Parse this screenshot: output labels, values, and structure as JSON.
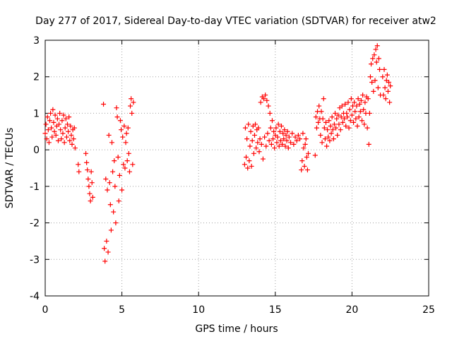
{
  "chart_data": {
    "type": "scatter",
    "title": "Day 277 of 2017, Sidereal Day-to-day VTEC variation (SDTVAR) for receiver atw2",
    "xlabel": "GPS time / hours",
    "ylabel": "SDTVAR / TECUs",
    "xlim": [
      0,
      25
    ],
    "ylim": [
      -4,
      3
    ],
    "xticks": [
      0,
      5,
      10,
      15,
      20,
      25
    ],
    "yticks": [
      -4,
      -3,
      -2,
      -1,
      0,
      1,
      2,
      3
    ],
    "x_tick_labels": [
      "0",
      "5",
      "10",
      "15",
      "20",
      "25"
    ],
    "y_tick_labels": [
      "-4",
      "-3",
      "-2",
      "-1",
      "0",
      "1",
      "2",
      "3"
    ],
    "grid": true,
    "marker": "+",
    "color": "#ff0000",
    "series": [
      {
        "name": "atw2",
        "points": [
          [
            0.0,
            0.45
          ],
          [
            0.05,
            0.7
          ],
          [
            0.1,
            0.3
          ],
          [
            0.15,
            0.9
          ],
          [
            0.2,
            0.55
          ],
          [
            0.25,
            0.2
          ],
          [
            0.3,
            0.8
          ],
          [
            0.35,
            1.0
          ],
          [
            0.4,
            0.6
          ],
          [
            0.45,
            0.35
          ],
          [
            0.5,
            1.1
          ],
          [
            0.55,
            0.75
          ],
          [
            0.6,
            0.5
          ],
          [
            0.65,
            0.95
          ],
          [
            0.7,
            0.4
          ],
          [
            0.75,
            0.65
          ],
          [
            0.8,
            0.85
          ],
          [
            0.85,
            0.25
          ],
          [
            0.9,
            0.7
          ],
          [
            0.95,
            1.0
          ],
          [
            1.0,
            0.55
          ],
          [
            1.05,
            0.3
          ],
          [
            1.1,
            0.8
          ],
          [
            1.15,
            0.45
          ],
          [
            1.2,
            0.95
          ],
          [
            1.25,
            0.2
          ],
          [
            1.3,
            0.6
          ],
          [
            1.35,
            0.85
          ],
          [
            1.4,
            0.35
          ],
          [
            1.45,
            0.7
          ],
          [
            1.5,
            0.5
          ],
          [
            1.55,
            0.9
          ],
          [
            1.6,
            0.25
          ],
          [
            1.65,
            0.65
          ],
          [
            1.7,
            0.4
          ],
          [
            1.75,
            0.15
          ],
          [
            1.8,
            0.55
          ],
          [
            1.85,
            0.3
          ],
          [
            1.9,
            0.6
          ],
          [
            1.95,
            0.05
          ],
          [
            2.15,
            -0.4
          ],
          [
            2.2,
            -0.6
          ],
          [
            2.65,
            -0.1
          ],
          [
            2.7,
            -0.35
          ],
          [
            2.75,
            -0.55
          ],
          [
            2.8,
            -0.8
          ],
          [
            2.85,
            -1.0
          ],
          [
            2.9,
            -1.2
          ],
          [
            2.95,
            -1.4
          ],
          [
            3.0,
            -0.6
          ],
          [
            3.05,
            -0.9
          ],
          [
            3.1,
            -1.3
          ],
          [
            3.8,
            1.25
          ],
          [
            3.85,
            -2.7
          ],
          [
            3.9,
            -3.05
          ],
          [
            3.95,
            -0.8
          ],
          [
            4.0,
            -2.5
          ],
          [
            4.05,
            -1.1
          ],
          [
            4.1,
            -2.8
          ],
          [
            4.15,
            0.4
          ],
          [
            4.2,
            -0.9
          ],
          [
            4.25,
            -1.5
          ],
          [
            4.3,
            -2.2
          ],
          [
            4.35,
            0.2
          ],
          [
            4.4,
            -0.6
          ],
          [
            4.45,
            -1.7
          ],
          [
            4.5,
            -0.3
          ],
          [
            4.55,
            -1.0
          ],
          [
            4.6,
            -2.0
          ],
          [
            4.65,
            1.15
          ],
          [
            4.7,
            0.9
          ],
          [
            4.75,
            -0.2
          ],
          [
            4.8,
            -1.4
          ],
          [
            4.85,
            -0.7
          ],
          [
            4.9,
            0.8
          ],
          [
            4.95,
            0.55
          ],
          [
            5.0,
            -1.1
          ],
          [
            5.05,
            0.35
          ],
          [
            5.1,
            -0.4
          ],
          [
            5.15,
            0.65
          ],
          [
            5.2,
            -0.5
          ],
          [
            5.25,
            0.2
          ],
          [
            5.3,
            0.45
          ],
          [
            5.35,
            -0.3
          ],
          [
            5.4,
            0.6
          ],
          [
            5.45,
            -0.1
          ],
          [
            5.5,
            -0.6
          ],
          [
            5.55,
            1.2
          ],
          [
            5.6,
            1.4
          ],
          [
            5.65,
            1.0
          ],
          [
            5.7,
            -0.4
          ],
          [
            5.75,
            1.3
          ],
          [
            13.0,
            -0.4
          ],
          [
            13.05,
            0.6
          ],
          [
            13.1,
            -0.2
          ],
          [
            13.15,
            0.3
          ],
          [
            13.2,
            -0.5
          ],
          [
            13.25,
            0.7
          ],
          [
            13.3,
            -0.3
          ],
          [
            13.35,
            0.1
          ],
          [
            13.4,
            0.5
          ],
          [
            13.45,
            -0.45
          ],
          [
            13.5,
            0.25
          ],
          [
            13.55,
            0.65
          ],
          [
            13.6,
            -0.1
          ],
          [
            13.65,
            0.4
          ],
          [
            13.7,
            0.7
          ],
          [
            13.75,
            0.05
          ],
          [
            13.8,
            0.55
          ],
          [
            13.85,
            0.2
          ],
          [
            13.9,
            0.6
          ],
          [
            13.95,
            -0.05
          ],
          [
            14.0,
            0.3
          ],
          [
            14.05,
            1.3
          ],
          [
            14.1,
            0.15
          ],
          [
            14.15,
            1.45
          ],
          [
            14.2,
            -0.25
          ],
          [
            14.25,
            1.4
          ],
          [
            14.3,
            0.35
          ],
          [
            14.35,
            1.5
          ],
          [
            14.4,
            0.1
          ],
          [
            14.45,
            1.35
          ],
          [
            14.5,
            0.45
          ],
          [
            14.55,
            1.2
          ],
          [
            14.6,
            0.25
          ],
          [
            14.65,
            1.0
          ],
          [
            14.7,
            0.6
          ],
          [
            14.75,
            0.15
          ],
          [
            14.8,
            0.8
          ],
          [
            14.85,
            0.3
          ],
          [
            14.9,
            0.5
          ],
          [
            14.95,
            0.05
          ],
          [
            15.0,
            0.4
          ],
          [
            15.05,
            0.6
          ],
          [
            15.1,
            0.2
          ],
          [
            15.15,
            0.35
          ],
          [
            15.2,
            0.7
          ],
          [
            15.25,
            0.1
          ],
          [
            15.3,
            0.5
          ],
          [
            15.35,
            0.25
          ],
          [
            15.4,
            0.65
          ],
          [
            15.45,
            0.15
          ],
          [
            15.5,
            0.45
          ],
          [
            15.55,
            0.3
          ],
          [
            15.6,
            0.55
          ],
          [
            15.65,
            0.1
          ],
          [
            15.7,
            0.4
          ],
          [
            15.75,
            0.25
          ],
          [
            15.8,
            0.5
          ],
          [
            15.85,
            0.05
          ],
          [
            15.9,
            0.35
          ],
          [
            16.0,
            0.2
          ],
          [
            16.1,
            0.45
          ],
          [
            16.2,
            0.15
          ],
          [
            16.3,
            0.35
          ],
          [
            16.4,
            0.25
          ],
          [
            16.5,
            0.4
          ],
          [
            16.6,
            0.3
          ],
          [
            16.7,
            -0.55
          ],
          [
            16.75,
            -0.3
          ],
          [
            16.8,
            0.45
          ],
          [
            16.85,
            0.05
          ],
          [
            16.9,
            -0.45
          ],
          [
            16.95,
            0.15
          ],
          [
            17.0,
            0.3
          ],
          [
            17.05,
            -0.2
          ],
          [
            17.1,
            -0.55
          ],
          [
            17.15,
            -0.1
          ],
          [
            17.6,
            -0.15
          ],
          [
            17.65,
            0.9
          ],
          [
            17.7,
            0.6
          ],
          [
            17.75,
            1.05
          ],
          [
            17.8,
            0.75
          ],
          [
            17.85,
            1.2
          ],
          [
            17.9,
            0.85
          ],
          [
            17.95,
            0.4
          ],
          [
            18.0,
            1.05
          ],
          [
            18.05,
            0.2
          ],
          [
            18.1,
            0.85
          ],
          [
            18.15,
            1.4
          ],
          [
            18.2,
            0.6
          ],
          [
            18.25,
            0.3
          ],
          [
            18.3,
            0.75
          ],
          [
            18.35,
            0.1
          ],
          [
            18.4,
            0.55
          ],
          [
            18.45,
            0.35
          ],
          [
            18.5,
            0.8
          ],
          [
            18.55,
            0.25
          ],
          [
            18.6,
            0.65
          ],
          [
            18.65,
            0.45
          ],
          [
            18.7,
            0.9
          ],
          [
            18.75,
            0.55
          ],
          [
            18.8,
            0.3
          ],
          [
            18.85,
            0.7
          ],
          [
            18.9,
            1.0
          ],
          [
            18.95,
            0.6
          ],
          [
            19.0,
            0.85
          ],
          [
            19.05,
            0.4
          ],
          [
            19.1,
            0.95
          ],
          [
            19.15,
            0.7
          ],
          [
            19.2,
            1.15
          ],
          [
            19.25,
            0.55
          ],
          [
            19.3,
            0.9
          ],
          [
            19.35,
            1.2
          ],
          [
            19.4,
            0.75
          ],
          [
            19.45,
            1.0
          ],
          [
            19.5,
            0.85
          ],
          [
            19.55,
            1.25
          ],
          [
            19.6,
            0.65
          ],
          [
            19.65,
            1.0
          ],
          [
            19.7,
            0.9
          ],
          [
            19.75,
            1.3
          ],
          [
            19.8,
            0.6
          ],
          [
            19.85,
            1.1
          ],
          [
            19.9,
            0.8
          ],
          [
            19.95,
            1.4
          ],
          [
            20.0,
            0.95
          ],
          [
            20.05,
            1.2
          ],
          [
            20.1,
            0.75
          ],
          [
            20.15,
            1.3
          ],
          [
            20.2,
            1.05
          ],
          [
            20.25,
            0.85
          ],
          [
            20.3,
            1.2
          ],
          [
            20.35,
            0.65
          ],
          [
            20.4,
            1.4
          ],
          [
            20.45,
            0.9
          ],
          [
            20.5,
            1.25
          ],
          [
            20.55,
            1.05
          ],
          [
            20.6,
            1.35
          ],
          [
            20.65,
            0.8
          ],
          [
            20.7,
            1.5
          ],
          [
            20.75,
            1.1
          ],
          [
            20.8,
            0.7
          ],
          [
            20.85,
            1.3
          ],
          [
            20.9,
            1.0
          ],
          [
            20.95,
            1.45
          ],
          [
            21.0,
            0.6
          ],
          [
            21.05,
            1.4
          ],
          [
            21.1,
            0.15
          ],
          [
            21.15,
            1.0
          ],
          [
            21.2,
            2.0
          ],
          [
            21.25,
            2.35
          ],
          [
            21.3,
            1.85
          ],
          [
            21.35,
            2.5
          ],
          [
            21.4,
            1.6
          ],
          [
            21.45,
            2.6
          ],
          [
            21.5,
            1.9
          ],
          [
            21.55,
            2.75
          ],
          [
            21.6,
            2.4
          ],
          [
            21.65,
            2.85
          ],
          [
            21.7,
            1.7
          ],
          [
            21.75,
            2.5
          ],
          [
            21.8,
            2.2
          ],
          [
            21.85,
            1.5
          ],
          [
            22.0,
            2.0
          ],
          [
            22.05,
            1.5
          ],
          [
            22.1,
            2.2
          ],
          [
            22.15,
            1.7
          ],
          [
            22.2,
            1.4
          ],
          [
            22.25,
            1.9
          ],
          [
            22.3,
            2.05
          ],
          [
            22.35,
            1.6
          ],
          [
            22.4,
            1.85
          ],
          [
            22.45,
            1.3
          ],
          [
            22.5,
            1.75
          ]
        ]
      }
    ]
  }
}
